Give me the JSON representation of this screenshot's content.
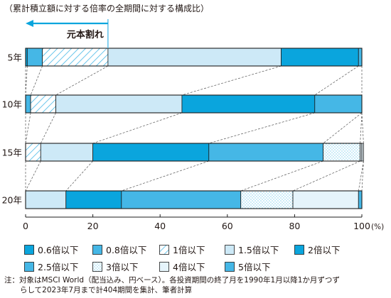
{
  "subtitle": "（累計積立額に対する倍率の全期間に対する構成比）",
  "annotation": "元本割れ",
  "note": {
    "prefix": "注：",
    "line1": "対象はMSCI World（配当込み、円ベース）。各投資期間の終了月を1990年1月以降1か月ずつず",
    "line2": "らして2023年7月まで計404期間を集計、筆者計算"
  },
  "colors": {
    "dark_blue": "#0aa5dd",
    "mid_blue": "#45b7e6",
    "light_blue": "#cde9f7",
    "pale_blue": "#e5f4fb",
    "stroke": "#1c1c1c",
    "leader": "#555555"
  },
  "chart_data": {
    "type": "bar",
    "orientation": "horizontal",
    "stacked": true,
    "title": "（累計積立額に対する倍率の全期間に対する構成比）",
    "categories": [
      "5年",
      "10年",
      "15年",
      "20年"
    ],
    "x_unit": "(%)",
    "xlim": [
      0,
      100
    ],
    "x_ticks": [
      0,
      20,
      40,
      60,
      80,
      100
    ],
    "grid": false,
    "legend_position": "bottom",
    "series": [
      {
        "name": "0.6倍以下",
        "values": [
          0.5,
          0,
          0,
          0
        ],
        "fill": "dark",
        "icon": "square"
      },
      {
        "name": "0.8倍以下",
        "values": [
          4.5,
          1.5,
          0,
          0
        ],
        "fill": "mid",
        "icon": "square"
      },
      {
        "name": "1倍以下",
        "values": [
          19.5,
          7.5,
          4.5,
          0
        ],
        "fill": "hatch",
        "icon": "square"
      },
      {
        "name": "1.5倍以下",
        "values": [
          51.5,
          37.5,
          15.5,
          12
        ],
        "fill": "light",
        "icon": "square"
      },
      {
        "name": "2倍以下",
        "values": [
          23,
          39.5,
          34.5,
          16.5
        ],
        "fill": "dark",
        "icon": "square"
      },
      {
        "name": "2.5倍以下",
        "values": [
          1,
          14,
          34,
          35.5
        ],
        "fill": "mid",
        "icon": "square"
      },
      {
        "name": "3倍以下",
        "values": [
          0,
          0,
          11,
          15.5
        ],
        "fill": "dots",
        "icon": "square"
      },
      {
        "name": "4倍以下",
        "values": [
          0,
          0,
          1,
          19.5
        ],
        "fill": "pale",
        "icon": "square"
      },
      {
        "name": "5倍以下",
        "values": [
          0,
          0,
          0,
          1
        ],
        "fill": "mid",
        "icon": "square"
      }
    ],
    "annotations": [
      {
        "text": "元本割れ",
        "refers_to": "0.6倍以下・0.8倍以下・1倍以下 (5年)",
        "arrow": "left"
      }
    ]
  }
}
